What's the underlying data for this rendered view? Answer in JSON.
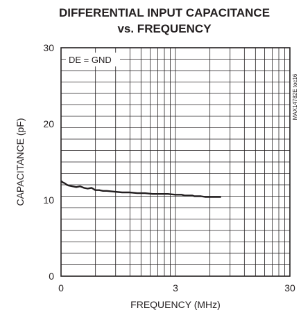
{
  "chart_data": {
    "type": "line",
    "title_line1": "DIFFERENTIAL INPUT CAPACITANCE",
    "title_line2": "vs. FREQUENCY",
    "xlabel": "FREQUENCY (MHz)",
    "ylabel": "CAPACITANCE (pF)",
    "xscale": "log-like 0 to 3 to 30 (two decades)",
    "x_ticks": [
      "0",
      "3",
      "30"
    ],
    "y_ticks": [
      "0",
      "10",
      "20",
      "30"
    ],
    "ylim": [
      0,
      30
    ],
    "grid": true,
    "annotation": "DE = GND",
    "part_code": "MAX14782E toc16",
    "series": [
      {
        "x": [
          0,
          0.05,
          0.1,
          0.15,
          0.2,
          0.3,
          0.4,
          0.5,
          0.6,
          0.7,
          0.8,
          0.9,
          1.0,
          1.1,
          1.2,
          1.4,
          1.6,
          1.8,
          2.0,
          2.2,
          2.4,
          2.6,
          2.8,
          3.0,
          3.2,
          3.4,
          3.6,
          3.8,
          4.0,
          4.2,
          4.4,
          4.6,
          4.8,
          5.0,
          5.5,
          6.0,
          6.5,
          7.0,
          7.5
        ],
        "y": [
          12.5,
          12.3,
          12.2,
          12.0,
          11.9,
          11.8,
          11.7,
          11.8,
          11.6,
          11.5,
          11.6,
          11.3,
          11.3,
          11.2,
          11.2,
          11.1,
          11.0,
          11.0,
          10.9,
          10.9,
          10.8,
          10.8,
          10.8,
          10.7,
          10.7,
          10.7,
          10.6,
          10.6,
          10.6,
          10.6,
          10.5,
          10.5,
          10.5,
          10.5,
          10.4,
          10.4,
          10.4,
          10.4,
          10.4
        ]
      }
    ]
  }
}
